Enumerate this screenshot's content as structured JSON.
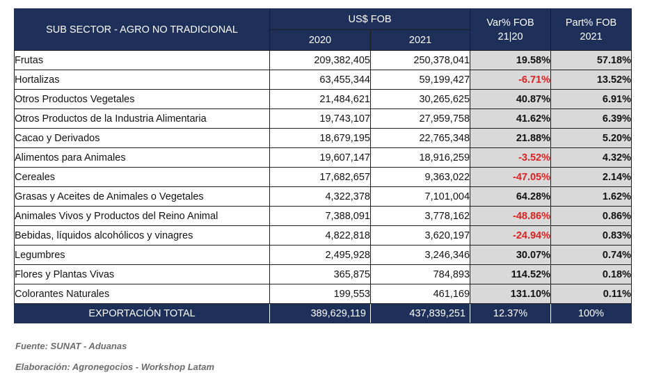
{
  "header": {
    "sector_label": "SUB SECTOR - AGRO NO TRADICIONAL",
    "fob_label": "US$ FOB",
    "year1": "2020",
    "year2": "2021",
    "var_label_1": "Var% FOB",
    "var_label_2": "21|20",
    "part_label_1": "Part% FOB",
    "part_label_2": "2021"
  },
  "rows": [
    {
      "name": "Frutas",
      "v2020": "209,382,405",
      "v2021": "250,378,041",
      "var": "19.58%",
      "part": "57.18%",
      "neg": false
    },
    {
      "name": "Hortalizas",
      "v2020": "63,455,344",
      "v2021": "59,199,427",
      "var": "-6.71%",
      "part": "13.52%",
      "neg": true
    },
    {
      "name": "Otros Productos Vegetales",
      "v2020": "21,484,621",
      "v2021": "30,265,625",
      "var": "40.87%",
      "part": "6.91%",
      "neg": false
    },
    {
      "name": "Otros Productos de la Industria Alimentaria",
      "v2020": "19,743,107",
      "v2021": "27,959,758",
      "var": "41.62%",
      "part": "6.39%",
      "neg": false
    },
    {
      "name": "Cacao y Derivados",
      "v2020": "18,679,195",
      "v2021": "22,765,348",
      "var": "21.88%",
      "part": "5.20%",
      "neg": false
    },
    {
      "name": "Alimentos para Animales",
      "v2020": "19,607,147",
      "v2021": "18,916,259",
      "var": "-3.52%",
      "part": "4.32%",
      "neg": true
    },
    {
      "name": "Cereales",
      "v2020": "17,682,657",
      "v2021": "9,363,022",
      "var": "-47.05%",
      "part": "2.14%",
      "neg": true
    },
    {
      "name": "Grasas y Aceites de Animales o Vegetales",
      "v2020": "4,322,378",
      "v2021": "7,101,004",
      "var": "64.28%",
      "part": "1.62%",
      "neg": false
    },
    {
      "name": "Animales Vivos y Productos del Reino Animal",
      "v2020": "7,388,091",
      "v2021": "3,778,162",
      "var": "-48.86%",
      "part": "0.86%",
      "neg": true
    },
    {
      "name": "Bebidas, líquidos alcohólicos y vinagres",
      "v2020": "4,822,818",
      "v2021": "3,620,197",
      "var": "-24.94%",
      "part": "0.83%",
      "neg": true
    },
    {
      "name": "Legumbres",
      "v2020": "2,495,928",
      "v2021": "3,246,346",
      "var": "30.07%",
      "part": "0.74%",
      "neg": false
    },
    {
      "name": "Flores y Plantas Vivas",
      "v2020": "365,875",
      "v2021": "784,893",
      "var": "114.52%",
      "part": "0.18%",
      "neg": false
    },
    {
      "name": "Colorantes Naturales",
      "v2020": "199,553",
      "v2021": "461,169",
      "var": "131.10%",
      "part": "0.11%",
      "neg": false
    }
  ],
  "total": {
    "name": "EXPORTACIÓN TOTAL",
    "v2020": "389,629,119",
    "v2021": "437,839,251",
    "var": "12.37%",
    "part": "100%"
  },
  "footer": {
    "source": "Fuente: SUNAT - Aduanas",
    "credit": "Elaboración: Agronegocios - Workshop Latam"
  },
  "colors": {
    "header_bg": "#1e2f5a",
    "negative": "#e02020",
    "pct_bg": "#d9d9d9"
  }
}
